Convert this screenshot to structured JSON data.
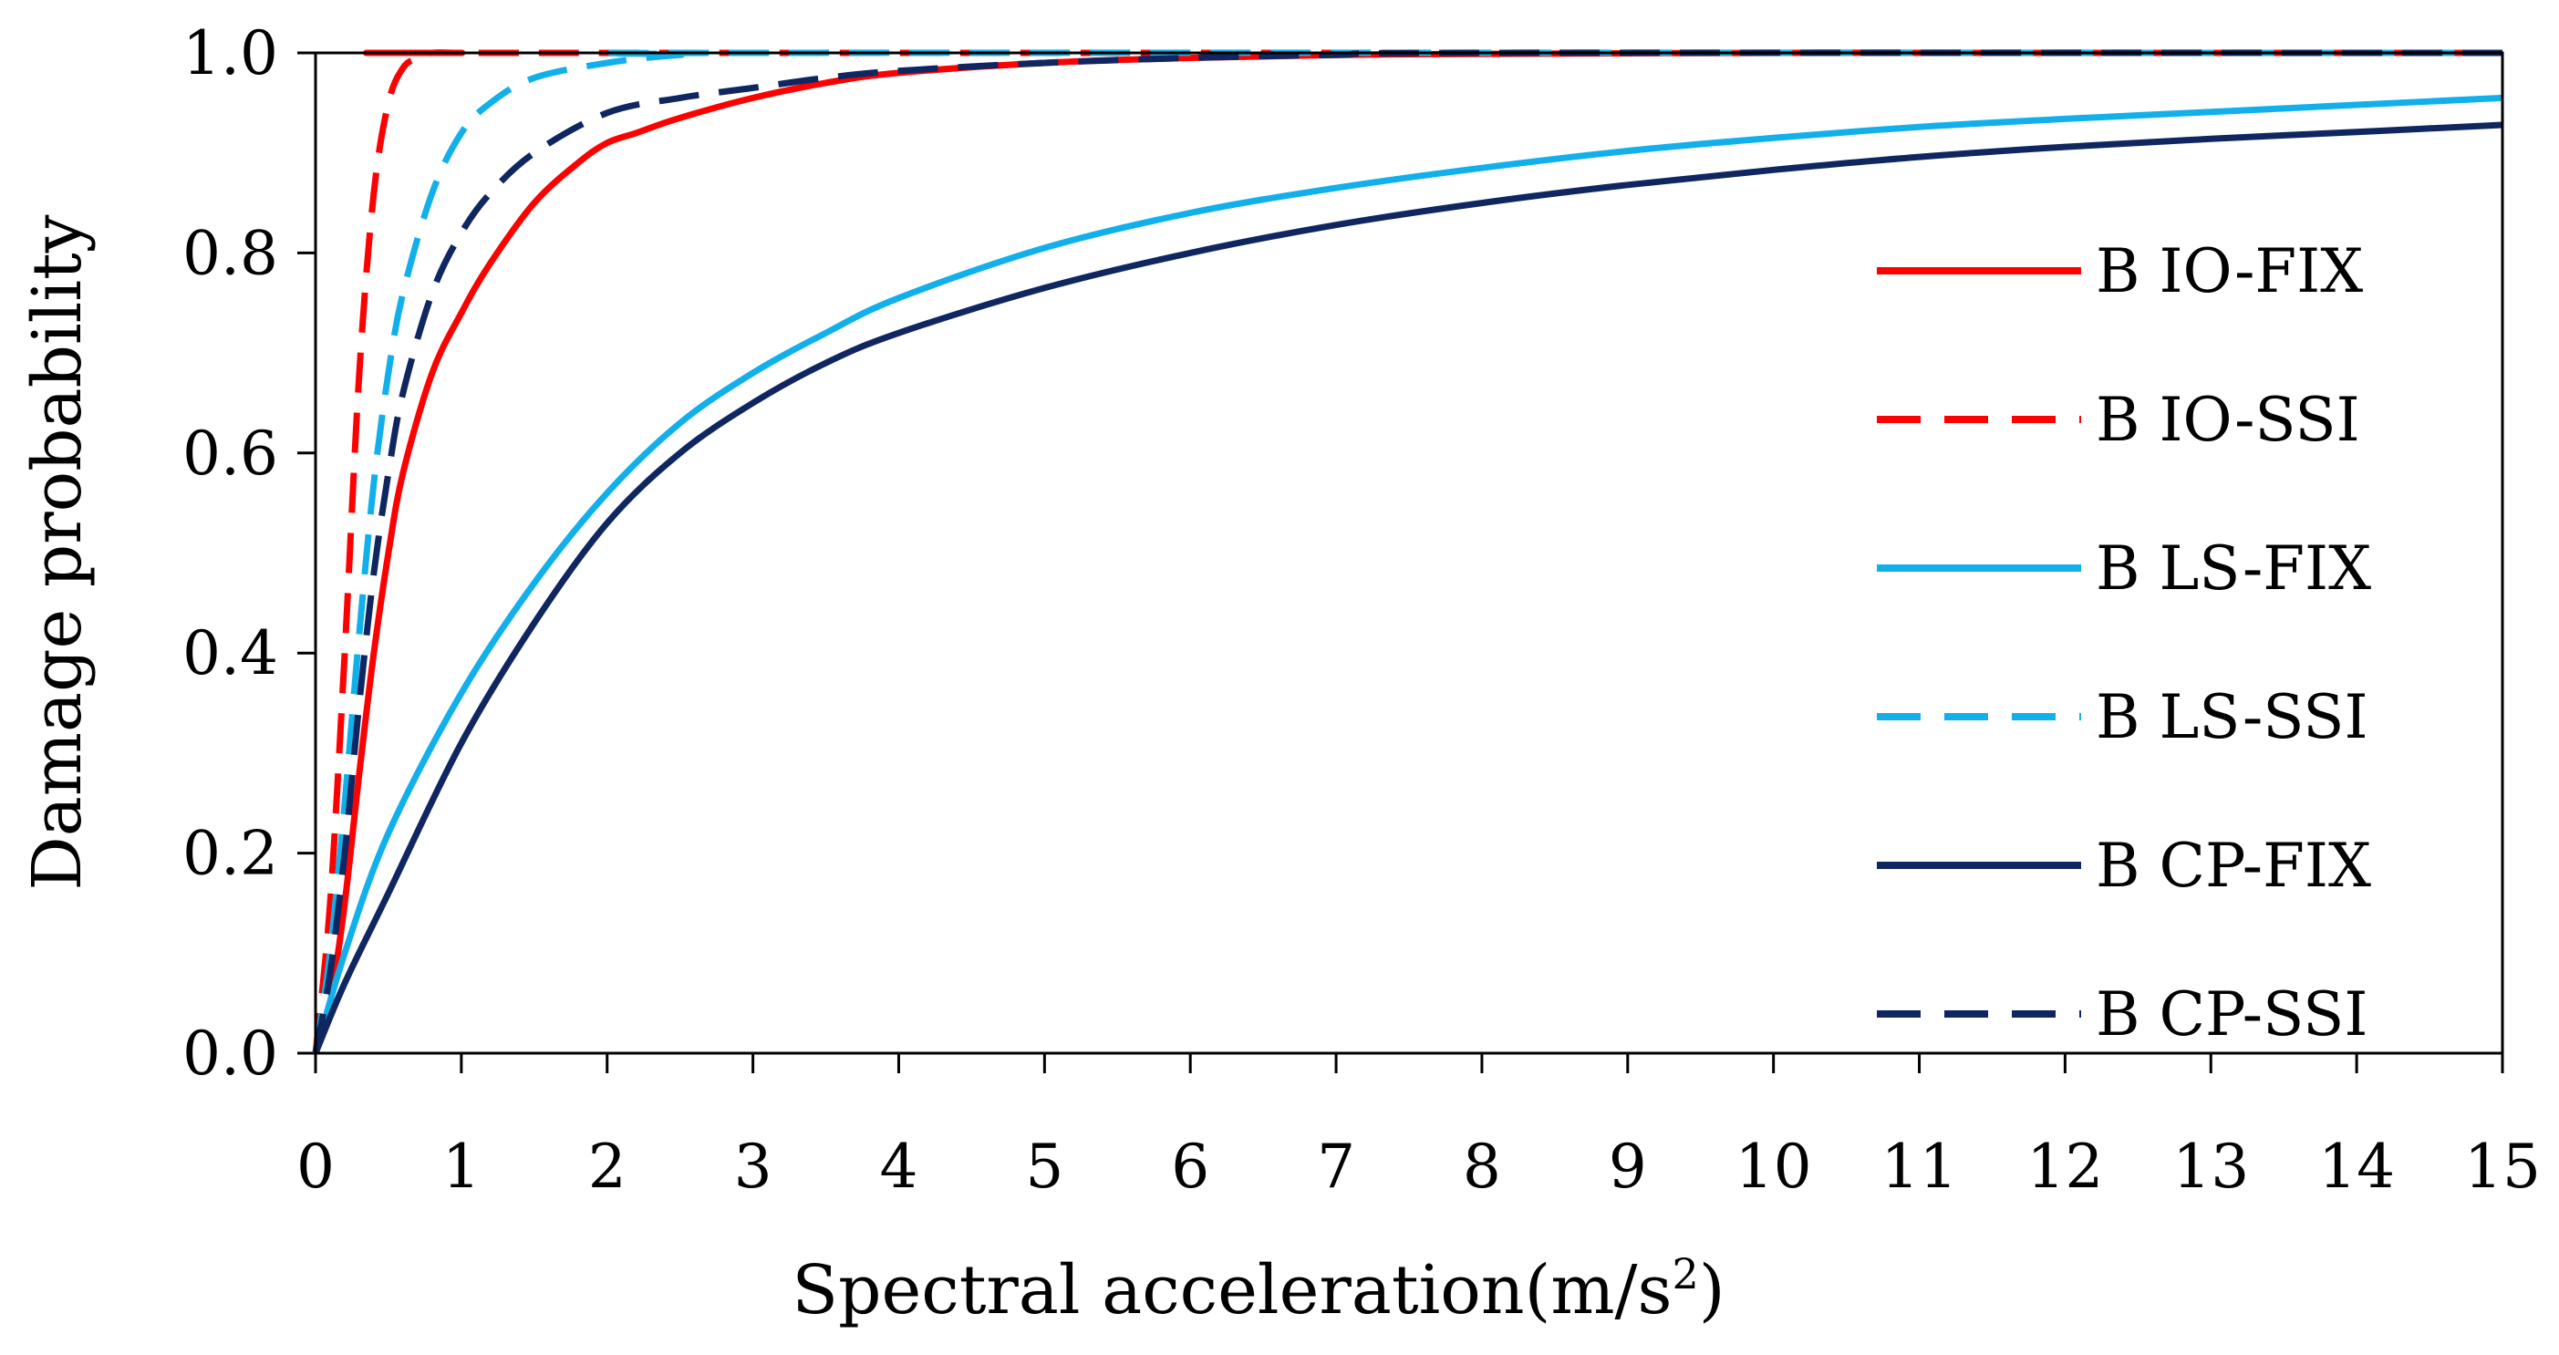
{
  "chart_data": {
    "type": "line",
    "title": "",
    "xlabel": "Spectral acceleration(m/s",
    "xlabel_sup": "2",
    "xlabel_suffix": ")",
    "ylabel": "Damage probability",
    "xlim": [
      0,
      15
    ],
    "ylim": [
      0,
      1.0
    ],
    "x_ticks": [
      "0",
      "1",
      "2",
      "3",
      "4",
      "5",
      "6",
      "7",
      "8",
      "9",
      "10",
      "11",
      "12",
      "13",
      "14",
      "15"
    ],
    "y_ticks": [
      "0.0",
      "0.2",
      "0.4",
      "0.6",
      "0.8",
      "1.0"
    ],
    "grid": false,
    "legend_position": "right",
    "series": [
      {
        "name": "B IO-FIX",
        "color": "#ff0000",
        "dashed": false,
        "x": [
          0,
          0.1,
          0.2,
          0.3,
          0.4,
          0.5,
          0.6,
          0.8,
          1.0,
          1.2,
          1.5,
          1.8,
          2.0,
          2.2,
          2.5,
          3.0,
          3.5,
          4.0,
          5.0,
          6.0,
          7.0,
          8.0,
          10.0,
          12.0,
          15.0
        ],
        "values": [
          0,
          0.05,
          0.15,
          0.28,
          0.4,
          0.5,
          0.58,
          0.68,
          0.74,
          0.79,
          0.85,
          0.89,
          0.91,
          0.92,
          0.935,
          0.955,
          0.97,
          0.98,
          0.99,
          0.995,
          0.998,
          0.999,
          1.0,
          1.0,
          1.0
        ]
      },
      {
        "name": "B IO-SSI",
        "color": "#ff0000",
        "dashed": true,
        "x": [
          0,
          0.1,
          0.2,
          0.3,
          0.4,
          0.5,
          0.6,
          0.7,
          0.8,
          1.0,
          1.5,
          15.0
        ],
        "values": [
          0,
          0.15,
          0.4,
          0.68,
          0.86,
          0.95,
          0.985,
          0.995,
          1.0,
          1.0,
          1.0,
          1.0
        ]
      },
      {
        "name": "B LS-FIX",
        "color": "#12b0ea",
        "dashed": false,
        "x": [
          0,
          0.2,
          0.5,
          1.0,
          1.5,
          2.0,
          2.5,
          3.0,
          3.5,
          4.0,
          5.0,
          6.0,
          7.0,
          8.0,
          9.0,
          10.0,
          11.0,
          12.0,
          13.0,
          14.0,
          15.0
        ],
        "values": [
          0,
          0.1,
          0.22,
          0.36,
          0.47,
          0.56,
          0.63,
          0.68,
          0.72,
          0.755,
          0.805,
          0.84,
          0.865,
          0.885,
          0.902,
          0.915,
          0.926,
          0.934,
          0.941,
          0.948,
          0.955
        ]
      },
      {
        "name": "B LS-SSI",
        "color": "#12b0ea",
        "dashed": true,
        "x": [
          0,
          0.1,
          0.2,
          0.3,
          0.4,
          0.5,
          0.6,
          0.8,
          1.0,
          1.2,
          1.5,
          2.0,
          2.5,
          3.0,
          15.0
        ],
        "values": [
          0,
          0.1,
          0.25,
          0.42,
          0.57,
          0.68,
          0.76,
          0.86,
          0.92,
          0.95,
          0.975,
          0.99,
          0.998,
          1.0,
          1.0
        ]
      },
      {
        "name": "B CP-FIX",
        "color": "#0f2660",
        "dashed": false,
        "x": [
          0,
          0.2,
          0.5,
          1.0,
          1.5,
          2.0,
          2.5,
          3.0,
          3.5,
          4.0,
          5.0,
          6.0,
          7.0,
          8.0,
          9.0,
          10.0,
          11.0,
          12.0,
          13.0,
          14.0,
          15.0
        ],
        "values": [
          0,
          0.07,
          0.16,
          0.31,
          0.43,
          0.53,
          0.6,
          0.65,
          0.69,
          0.72,
          0.765,
          0.8,
          0.828,
          0.85,
          0.868,
          0.883,
          0.896,
          0.906,
          0.914,
          0.921,
          0.928
        ]
      },
      {
        "name": "B CP-SSI",
        "color": "#0f2660",
        "dashed": true,
        "x": [
          0,
          0.1,
          0.2,
          0.3,
          0.4,
          0.5,
          0.6,
          0.8,
          1.0,
          1.2,
          1.5,
          2.0,
          2.5,
          3.0,
          3.5,
          4.0,
          5.0,
          6.0,
          7.0,
          8.0,
          15.0
        ],
        "values": [
          0,
          0.08,
          0.2,
          0.35,
          0.48,
          0.58,
          0.66,
          0.76,
          0.82,
          0.86,
          0.9,
          0.94,
          0.955,
          0.965,
          0.975,
          0.982,
          0.99,
          0.995,
          0.998,
          1.0,
          1.0
        ]
      }
    ]
  }
}
